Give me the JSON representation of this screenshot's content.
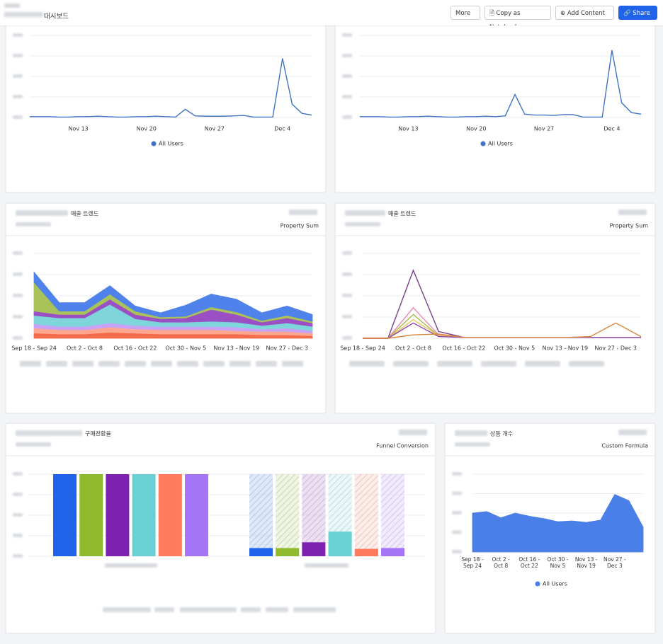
{
  "header": {
    "title": "대시보드",
    "buttons": {
      "more": "More",
      "copy": "Copy as Notebook",
      "add": "Add Content",
      "share": "Share"
    }
  },
  "panels": [
    {
      "type": "line",
      "categories": [
        null,
        null,
        null,
        null,
        null,
        "Nov 13",
        null,
        null,
        null,
        null,
        null,
        null,
        "Nov 20",
        null,
        null,
        null,
        null,
        null,
        null,
        "Nov 27",
        null,
        null,
        null,
        null,
        null,
        null,
        "Dec 4",
        null,
        null,
        null
      ],
      "series": [
        {
          "name": "All Users",
          "color": "#3f73c4",
          "values": [
            1,
            1,
            1,
            0.5,
            0.5,
            1,
            1,
            1.5,
            1,
            0.5,
            0.5,
            1,
            1,
            1.5,
            1,
            0.5,
            10,
            2,
            1.5,
            1.5,
            1.5,
            2,
            2.5,
            0.5,
            0.5,
            0.5,
            72,
            16,
            5,
            3
          ]
        }
      ],
      "ylim": [
        0,
        100
      ],
      "legend": "bottom"
    },
    {
      "type": "line",
      "categories": [
        null,
        null,
        null,
        null,
        null,
        "Nov 13",
        null,
        null,
        null,
        null,
        null,
        null,
        "Nov 20",
        null,
        null,
        null,
        null,
        null,
        null,
        "Nov 27",
        null,
        null,
        null,
        null,
        null,
        null,
        "Dec 4",
        null,
        null,
        null
      ],
      "series": [
        {
          "name": "All Users",
          "color": "#3f73c4",
          "values": [
            1,
            1,
            1,
            0.5,
            0.5,
            1,
            1,
            1.5,
            1,
            0.5,
            0.5,
            1,
            1,
            1.5,
            1,
            2,
            28,
            4,
            3,
            3,
            2.5,
            3.5,
            3.5,
            0.5,
            0.5,
            0.5,
            82,
            18,
            6,
            4
          ]
        }
      ],
      "ylim": [
        0,
        100
      ],
      "legend": "bottom"
    },
    {
      "type": "stacked_area",
      "title": "매출 트렌드",
      "badge": "Property Sum",
      "categories": [
        "Sep 18 - Sep 24",
        null,
        "Oct 2 - Oct 8",
        null,
        "Oct 16 - Oct 22",
        null,
        "Oct 30 - Nov 5",
        null,
        "Nov 13 - Nov 19",
        null,
        "Nov 27 - Dec 3",
        null
      ],
      "series": [
        {
          "color": "#f26b4a",
          "values": [
            6,
            5,
            5,
            7,
            6,
            5,
            5,
            5,
            5,
            4,
            4,
            3
          ]
        },
        {
          "color": "#ffa78e",
          "values": [
            6,
            5,
            5,
            6,
            5,
            5,
            5,
            5,
            4,
            4,
            4,
            3
          ]
        },
        {
          "color": "#c9a2f7",
          "values": [
            5,
            4,
            4,
            5,
            4,
            4,
            4,
            4,
            4,
            3,
            4,
            3
          ]
        },
        {
          "color": "#7fd6da",
          "values": [
            10,
            10,
            10,
            22,
            8,
            5,
            5,
            6,
            6,
            4,
            6,
            5
          ]
        },
        {
          "color": "#9b4fc4",
          "values": [
            5,
            4,
            4,
            6,
            5,
            4,
            5,
            14,
            9,
            4,
            6,
            4
          ]
        },
        {
          "color": "#a9c25a",
          "values": [
            34,
            4,
            4,
            6,
            4,
            2,
            2,
            3,
            3,
            2,
            3,
            2
          ]
        },
        {
          "color": "#4f82ea",
          "values": [
            12,
            10,
            10,
            10,
            6,
            5,
            13,
            15,
            15,
            9,
            11,
            8
          ]
        }
      ],
      "ylim": [
        0,
        100
      ]
    },
    {
      "type": "line",
      "title": "매출 트렌드",
      "badge": "Property Sum",
      "categories": [
        "Sep 18 - Sep 24",
        null,
        "Oct 2 - Oct 8",
        null,
        "Oct 16 - Oct 22",
        null,
        "Oct 30 - Nov 5",
        null,
        "Nov 13 - Nov 19",
        null,
        "Nov 27 - Dec 3",
        null
      ],
      "series": [
        {
          "color": "#7b3f8c",
          "values": [
            0,
            0,
            80,
            8,
            1,
            1,
            1,
            1,
            1,
            1,
            1,
            1
          ]
        },
        {
          "color": "#e98ab4",
          "values": [
            0,
            0,
            36,
            4,
            1,
            1,
            1,
            1,
            1,
            1,
            1,
            1
          ]
        },
        {
          "color": "#a8b84a",
          "values": [
            0,
            0,
            28,
            3,
            1,
            1,
            1,
            1,
            1,
            1,
            1,
            1
          ]
        },
        {
          "color": "#e6c85a",
          "values": [
            0,
            0,
            22,
            3,
            1,
            1,
            1,
            1,
            1,
            1,
            1,
            1
          ]
        },
        {
          "color": "#8e44ad",
          "values": [
            0,
            0,
            18,
            2,
            1,
            1,
            1,
            1,
            1,
            1,
            1,
            1
          ]
        },
        {
          "color": "#d9853a",
          "values": [
            0,
            0,
            4,
            5,
            1,
            1,
            1,
            1,
            1,
            2,
            18,
            2
          ]
        }
      ],
      "ylim": [
        0,
        100
      ]
    },
    {
      "type": "bar",
      "title": "구매전환율",
      "badge": "Funnel Conversion",
      "series": [
        {
          "color": "#1f63e8",
          "values": [
            100,
            10
          ]
        },
        {
          "color": "#8fba2e",
          "values": [
            100,
            10
          ]
        },
        {
          "color": "#7d22b0",
          "values": [
            100,
            17
          ]
        },
        {
          "color": "#68d1d4",
          "values": [
            100,
            30
          ]
        },
        {
          "color": "#ff7b5c",
          "values": [
            100,
            9
          ]
        },
        {
          "color": "#a574f7",
          "values": [
            100,
            10
          ]
        }
      ],
      "ylim": [
        0,
        100
      ]
    },
    {
      "type": "area",
      "title": "상품 개수",
      "badge": "Custom Formula",
      "categories": [
        "Sep 18 - Sep 24",
        null,
        "Oct 2 - Oct 8",
        null,
        "Oct 16 - Oct 22",
        null,
        "Oct 30 - Nov 5",
        null,
        "Nov 13 - Nov 19",
        null,
        "Nov 27 - Dec 3",
        null,
        null
      ],
      "series": [
        {
          "name": "All Users",
          "color": "#4a7fe8",
          "values": [
            50,
            52,
            44,
            50,
            46,
            43,
            39,
            40,
            38,
            41,
            74,
            66,
            32
          ]
        }
      ],
      "ylim": [
        0,
        100
      ],
      "legend": "bottom"
    }
  ]
}
